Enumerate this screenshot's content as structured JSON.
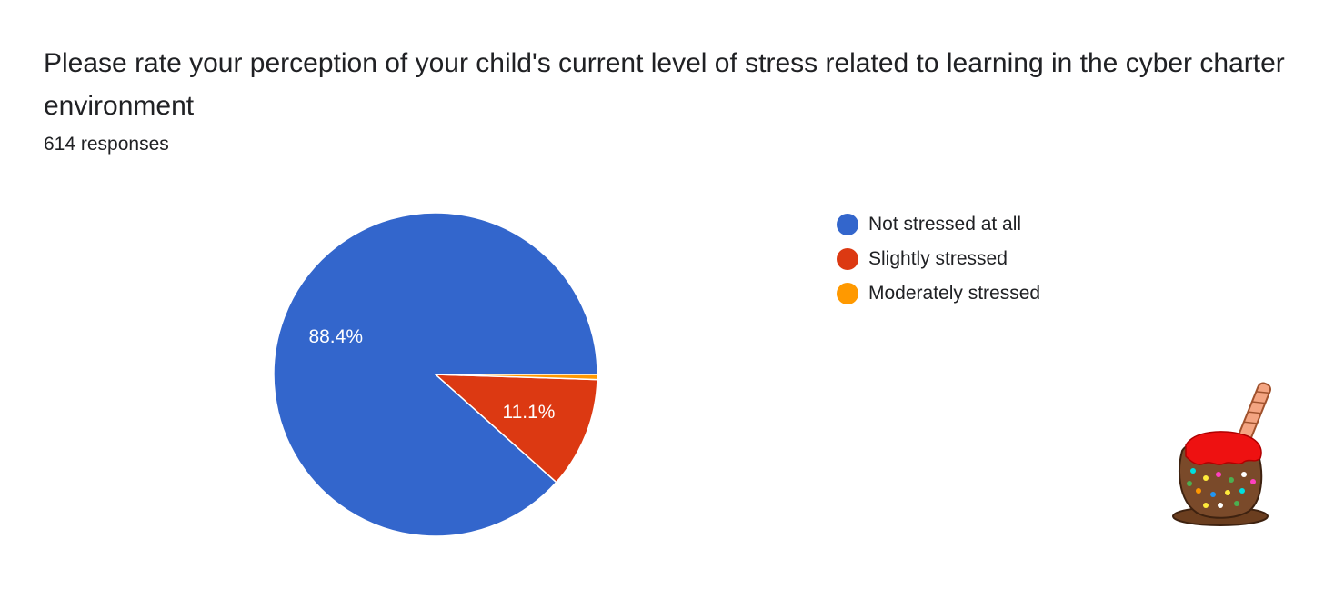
{
  "header": {
    "title": "Please rate your perception of your child's current level of stress related to learning in the cyber charter environment",
    "responses": "614 responses"
  },
  "chart_data": {
    "type": "pie",
    "title": "Please rate your perception of your child's current level of stress related to learning in the cyber charter environment",
    "total_responses": 614,
    "categories": [
      "Not stressed at all",
      "Slightly stressed",
      "Moderately stressed"
    ],
    "values": [
      88.4,
      11.1,
      0.5
    ],
    "labels": [
      "88.4%",
      "11.1%",
      ""
    ],
    "colors": [
      "#3366cc",
      "#dc3912",
      "#ff9900"
    ],
    "legend_position": "right",
    "start_angle": "3 o'clock",
    "direction": "counterclockwise"
  },
  "decoration": {
    "icon": "candy-apple-icon"
  }
}
